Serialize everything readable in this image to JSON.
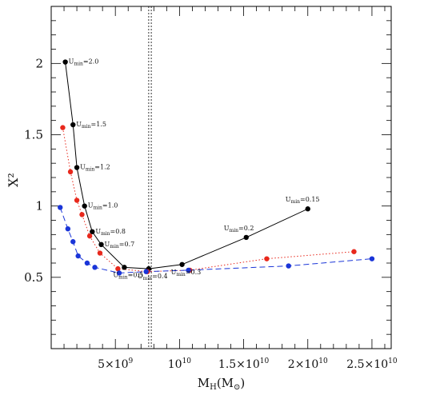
{
  "chart_data": {
    "type": "line",
    "xlabel": "M_H(M_⊙)",
    "ylabel": "X²",
    "xlim": [
      0,
      26500000000.0
    ],
    "ylim": [
      0,
      2.4
    ],
    "x_ticks": [
      {
        "value": 5000000000.0,
        "mantissa": "5",
        "times": "×",
        "base": "10",
        "exp": "9"
      },
      {
        "value": 10000000000.0,
        "mantissa": "",
        "times": "",
        "base": "10",
        "exp": "10"
      },
      {
        "value": 15000000000.0,
        "mantissa": "1.5",
        "times": "×",
        "base": "10",
        "exp": "10"
      },
      {
        "value": 20000000000.0,
        "mantissa": "2",
        "times": "×",
        "base": "10",
        "exp": "10"
      },
      {
        "value": 25000000000.0,
        "mantissa": "2.5",
        "times": "×",
        "base": "10",
        "exp": "10"
      }
    ],
    "y_ticks": [
      {
        "value": 0.5,
        "label": "0.5"
      },
      {
        "value": 1,
        "label": "1"
      },
      {
        "value": 1.5,
        "label": "1.5"
      },
      {
        "value": 2,
        "label": "2"
      }
    ],
    "vlines": [
      7600000000.0,
      7800000000.0
    ],
    "series": [
      {
        "color": "#000000",
        "dash": "solid",
        "x": [
          1100000000.0,
          1700000000.0,
          2000000000.0,
          2600000000.0,
          3200000000.0,
          3900000000.0,
          5700000000.0,
          7600000000.0,
          10200000000.0,
          15200000000.0,
          20000000000.0
        ],
        "y": [
          2.01,
          1.57,
          1.27,
          1.0,
          0.82,
          0.73,
          0.57,
          0.56,
          0.59,
          0.78,
          0.98
        ]
      },
      {
        "color": "#e8281c",
        "dash": "dotted",
        "x": [
          900000000.0,
          1500000000.0,
          2000000000.0,
          2400000000.0,
          3000000000.0,
          3800000000.0,
          5200000000.0,
          7500000000.0,
          10800000000.0,
          16800000000.0,
          23600000000.0
        ],
        "y": [
          1.55,
          1.24,
          1.04,
          0.94,
          0.79,
          0.67,
          0.56,
          0.54,
          0.55,
          0.63,
          0.68
        ]
      },
      {
        "color": "#1a35d8",
        "dash": "dashed",
        "x": [
          700000000.0,
          1300000000.0,
          1700000000.0,
          2100000000.0,
          2800000000.0,
          3400000000.0,
          5300000000.0,
          7400000000.0,
          10700000000.0,
          18500000000.0,
          25000000000.0
        ],
        "y": [
          0.99,
          0.84,
          0.75,
          0.65,
          0.6,
          0.57,
          0.53,
          0.54,
          0.55,
          0.58,
          0.63
        ]
      }
    ],
    "annotations": [
      {
        "value": "2.0",
        "x": 1100000000.0,
        "y": 2.01,
        "pos": "right"
      },
      {
        "value": "1.5",
        "x": 1700000000.0,
        "y": 1.57,
        "pos": "right"
      },
      {
        "value": "1.2",
        "x": 2000000000.0,
        "y": 1.27,
        "pos": "right"
      },
      {
        "value": "1.0",
        "x": 2600000000.0,
        "y": 1.0,
        "pos": "right"
      },
      {
        "value": "0.8",
        "x": 3200000000.0,
        "y": 0.82,
        "pos": "right"
      },
      {
        "value": "0.7",
        "x": 3900000000.0,
        "y": 0.73,
        "pos": "right"
      },
      {
        "value": "0.5",
        "x": 5700000000.0,
        "y": 0.57,
        "pos": "below"
      },
      {
        "value": "0.4",
        "x": 7600000000.0,
        "y": 0.56,
        "pos": "below"
      },
      {
        "value": "0.3",
        "x": 10200000000.0,
        "y": 0.59,
        "pos": "below"
      },
      {
        "value": "0.2",
        "x": 15200000000.0,
        "y": 0.78,
        "pos": "above"
      },
      {
        "value": "0.15",
        "x": 20000000000.0,
        "y": 0.98,
        "pos": "above"
      }
    ],
    "annotation_prefix": "U",
    "annotation_sub": "min",
    "annotation_eq": "="
  }
}
